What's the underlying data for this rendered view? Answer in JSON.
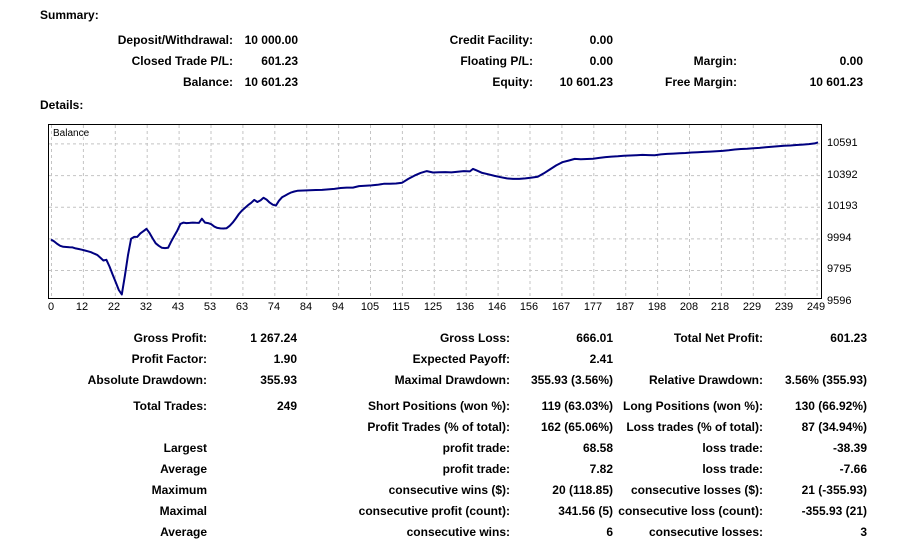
{
  "summary": {
    "title": "Summary:",
    "rows": [
      [
        "Deposit/Withdrawal:",
        "10 000.00",
        "Credit Facility:",
        "0.00",
        "",
        ""
      ],
      [
        "Closed Trade P/L:",
        "601.23",
        "Floating P/L:",
        "0.00",
        "Margin:",
        "0.00"
      ],
      [
        "Balance:",
        "10 601.23",
        "Equity:",
        "10 601.23",
        "Free Margin:",
        "10 601.23"
      ]
    ]
  },
  "details": {
    "title": "Details:",
    "rows": [
      {
        "cells": [
          "Gross Profit:",
          "1 267.24",
          "Gross Loss:",
          "666.01",
          "Total Net Profit:",
          "601.23"
        ],
        "gap": false
      },
      {
        "cells": [
          "Profit Factor:",
          "1.90",
          "Expected Payoff:",
          "2.41",
          "",
          ""
        ],
        "gap": false
      },
      {
        "cells": [
          "Absolute Drawdown:",
          "355.93",
          "Maximal Drawdown:",
          "355.93 (3.56%)",
          "Relative Drawdown:",
          "3.56% (355.93)"
        ],
        "gap": false
      },
      {
        "cells": [
          "Total Trades:",
          "249",
          "Short Positions (won %):",
          "119 (63.03%)",
          "Long Positions (won %):",
          "130 (66.92%)"
        ],
        "gap": true
      },
      {
        "cells": [
          "",
          "",
          "Profit Trades (% of total):",
          "162 (65.06%)",
          "Loss trades (% of total):",
          "87 (34.94%)"
        ],
        "gap": false
      },
      {
        "cells": [
          "Largest",
          "",
          "profit trade:",
          "68.58",
          "loss trade:",
          "-38.39"
        ],
        "gap": false
      },
      {
        "cells": [
          "Average",
          "",
          "profit trade:",
          "7.82",
          "loss trade:",
          "-7.66"
        ],
        "gap": false
      },
      {
        "cells": [
          "Maximum",
          "",
          "consecutive wins ($):",
          "20 (118.85)",
          "consecutive losses ($):",
          "21 (-355.93)"
        ],
        "gap": false
      },
      {
        "cells": [
          "Maximal",
          "",
          "consecutive profit (count):",
          "341.56 (5)",
          "consecutive loss (count):",
          "-355.93 (21)"
        ],
        "gap": false
      },
      {
        "cells": [
          "Average",
          "",
          "consecutive wins:",
          "6",
          "consecutive losses:",
          "3"
        ],
        "gap": false
      }
    ]
  },
  "chart_data": {
    "type": "line",
    "title": "Balance",
    "series_label": "Balance",
    "legend_position": "top-left-inside",
    "grid": true,
    "line_color": "#000080",
    "grid_color": "#c4c4c4",
    "border_color": "#000000",
    "xlim": [
      0,
      249
    ],
    "ylim": [
      9622,
      10710
    ],
    "x_tick_labels": [
      "0",
      "12",
      "22",
      "32",
      "43",
      "53",
      "63",
      "74",
      "84",
      "94",
      "105",
      "115",
      "125",
      "136",
      "146",
      "156",
      "167",
      "177",
      "187",
      "198",
      "208",
      "218",
      "229",
      "239",
      "249"
    ],
    "y_tick_labels": [
      "10591",
      "10392",
      "10193",
      "9994",
      "9795",
      "9596"
    ],
    "y_tick_values": [
      10591,
      10392,
      10193,
      9994,
      9795,
      9596
    ],
    "points": [
      [
        0,
        9990
      ],
      [
        1,
        9978
      ],
      [
        2,
        9962
      ],
      [
        3,
        9950
      ],
      [
        4,
        9944
      ],
      [
        6,
        9941
      ],
      [
        7,
        9940
      ],
      [
        8,
        9934
      ],
      [
        9,
        9930
      ],
      [
        10,
        9926
      ],
      [
        11,
        9921
      ],
      [
        12,
        9916
      ],
      [
        13,
        9910
      ],
      [
        14,
        9901
      ],
      [
        15,
        9893
      ],
      [
        16,
        9876
      ],
      [
        17,
        9858
      ],
      [
        18,
        9862
      ],
      [
        19,
        9820
      ],
      [
        20,
        9770
      ],
      [
        21,
        9722
      ],
      [
        22,
        9672
      ],
      [
        23,
        9644
      ],
      [
        24,
        9762
      ],
      [
        25,
        9892
      ],
      [
        26,
        9995
      ],
      [
        27,
        10006
      ],
      [
        28,
        10006
      ],
      [
        29,
        10028
      ],
      [
        30,
        10042
      ],
      [
        31,
        10057
      ],
      [
        32,
        10030
      ],
      [
        33,
        9996
      ],
      [
        34,
        9966
      ],
      [
        35,
        9950
      ],
      [
        36,
        9938
      ],
      [
        37,
        9936
      ],
      [
        38,
        9938
      ],
      [
        39,
        9976
      ],
      [
        40,
        10012
      ],
      [
        41,
        10046
      ],
      [
        42,
        10088
      ],
      [
        43,
        10096
      ],
      [
        44,
        10093
      ],
      [
        45,
        10094
      ],
      [
        46,
        10096
      ],
      [
        47,
        10095
      ],
      [
        48,
        10094
      ],
      [
        49,
        10121
      ],
      [
        50,
        10096
      ],
      [
        51,
        10093
      ],
      [
        52,
        10086
      ],
      [
        53,
        10071
      ],
      [
        54,
        10063
      ],
      [
        55,
        10060
      ],
      [
        56,
        10059
      ],
      [
        57,
        10061
      ],
      [
        58,
        10076
      ],
      [
        59,
        10096
      ],
      [
        60,
        10122
      ],
      [
        61,
        10150
      ],
      [
        62,
        10172
      ],
      [
        63,
        10190
      ],
      [
        64,
        10206
      ],
      [
        65,
        10221
      ],
      [
        66,
        10239
      ],
      [
        67,
        10226
      ],
      [
        68,
        10236
      ],
      [
        69,
        10252
      ],
      [
        70,
        10241
      ],
      [
        71,
        10222
      ],
      [
        72,
        10209
      ],
      [
        73,
        10203
      ],
      [
        74,
        10233
      ],
      [
        75,
        10255
      ],
      [
        76,
        10266
      ],
      [
        77,
        10277
      ],
      [
        78,
        10286
      ],
      [
        79,
        10292
      ],
      [
        80,
        10296
      ],
      [
        82,
        10298
      ],
      [
        84,
        10300
      ],
      [
        86,
        10301
      ],
      [
        88,
        10302
      ],
      [
        90,
        10305
      ],
      [
        92,
        10308
      ],
      [
        94,
        10314
      ],
      [
        96,
        10316
      ],
      [
        98,
        10316
      ],
      [
        100,
        10326
      ],
      [
        102,
        10328
      ],
      [
        104,
        10330
      ],
      [
        106,
        10334
      ],
      [
        108,
        10340
      ],
      [
        110,
        10341
      ],
      [
        112,
        10342
      ],
      [
        114,
        10347
      ],
      [
        116,
        10371
      ],
      [
        118,
        10392
      ],
      [
        120,
        10409
      ],
      [
        122,
        10420
      ],
      [
        124,
        10411
      ],
      [
        126,
        10413
      ],
      [
        128,
        10414
      ],
      [
        130,
        10412
      ],
      [
        132,
        10416
      ],
      [
        134,
        10420
      ],
      [
        136,
        10418
      ],
      [
        137,
        10434
      ],
      [
        138,
        10426
      ],
      [
        140,
        10409
      ],
      [
        142,
        10400
      ],
      [
        144,
        10390
      ],
      [
        146,
        10382
      ],
      [
        148,
        10374
      ],
      [
        150,
        10371
      ],
      [
        152,
        10371
      ],
      [
        154,
        10374
      ],
      [
        156,
        10379
      ],
      [
        158,
        10385
      ],
      [
        160,
        10406
      ],
      [
        162,
        10431
      ],
      [
        164,
        10456
      ],
      [
        166,
        10476
      ],
      [
        168,
        10486
      ],
      [
        170,
        10497
      ],
      [
        172,
        10494
      ],
      [
        174,
        10496
      ],
      [
        176,
        10498
      ],
      [
        178,
        10503
      ],
      [
        180,
        10508
      ],
      [
        182,
        10511
      ],
      [
        184,
        10513
      ],
      [
        186,
        10516
      ],
      [
        188,
        10518
      ],
      [
        190,
        10520
      ],
      [
        192,
        10522
      ],
      [
        194,
        10521
      ],
      [
        196,
        10520
      ],
      [
        198,
        10525
      ],
      [
        200,
        10528
      ],
      [
        202,
        10530
      ],
      [
        204,
        10532
      ],
      [
        206,
        10534
      ],
      [
        208,
        10537
      ],
      [
        210,
        10539
      ],
      [
        212,
        10541
      ],
      [
        214,
        10543
      ],
      [
        216,
        10545
      ],
      [
        218,
        10547
      ],
      [
        220,
        10551
      ],
      [
        222,
        10556
      ],
      [
        224,
        10559
      ],
      [
        226,
        10561
      ],
      [
        228,
        10564
      ],
      [
        230,
        10566
      ],
      [
        232,
        10570
      ],
      [
        234,
        10573
      ],
      [
        236,
        10576
      ],
      [
        238,
        10579
      ],
      [
        240,
        10581
      ],
      [
        242,
        10584
      ],
      [
        244,
        10587
      ],
      [
        246,
        10590
      ],
      [
        248,
        10594
      ],
      [
        249,
        10601
      ]
    ]
  }
}
